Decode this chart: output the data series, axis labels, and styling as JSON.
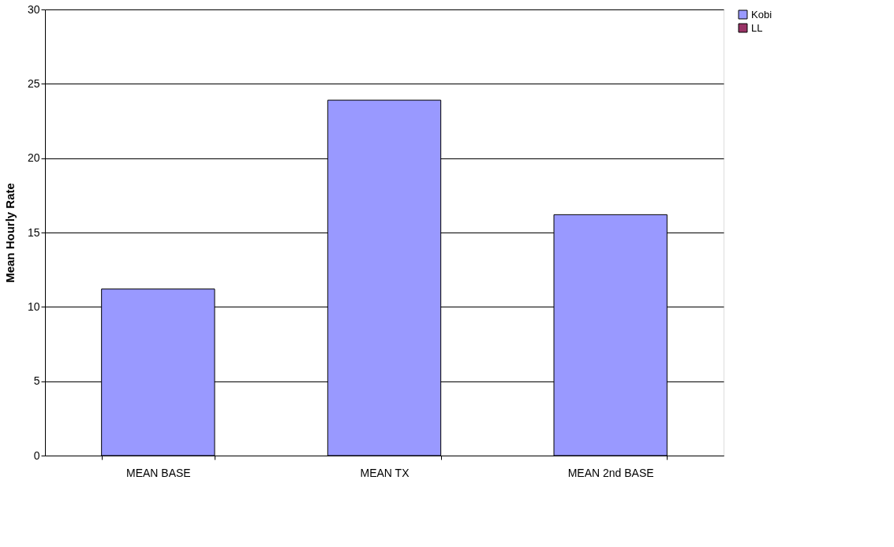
{
  "chart_data": {
    "type": "bar",
    "ylabel": "Mean Hourly Rate",
    "categories": [
      "MEAN BASE",
      "MEAN TX",
      "MEAN 2nd BASE"
    ],
    "series": [
      {
        "name": "Kobi",
        "color": "#9999ff",
        "values": [
          11.2,
          23.9,
          16.2
        ]
      },
      {
        "name": "LL",
        "color": "#993366",
        "values": [
          null,
          null,
          null
        ]
      }
    ],
    "ylim": [
      0,
      30
    ],
    "yticks": [
      0,
      5,
      10,
      15,
      20,
      25,
      30
    ],
    "grid": "y",
    "legend": "right"
  }
}
